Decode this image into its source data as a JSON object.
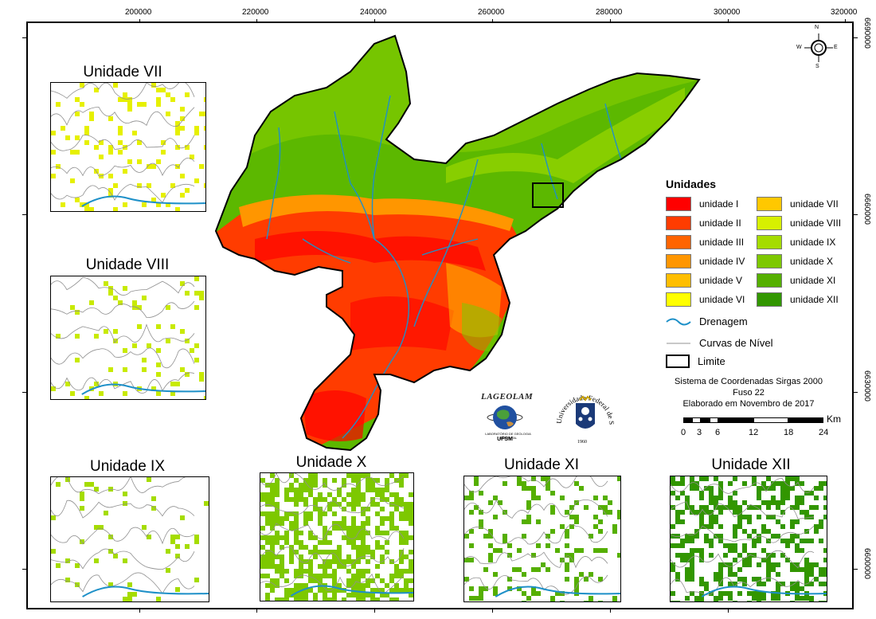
{
  "axes": {
    "x_ticks": [
      "200000",
      "220000",
      "240000",
      "260000",
      "280000",
      "300000",
      "320000"
    ],
    "y_ticks": [
      "6690000",
      "6660000",
      "6630000",
      "6600000"
    ]
  },
  "north_arrow": {
    "n": "N",
    "s": "S",
    "e": "E",
    "w": "W"
  },
  "insets": {
    "vii": "Unidade VII",
    "viii": "Unidade VIII",
    "ix": "Unidade IX",
    "x": "Unidade X",
    "xi": "Unidade XI",
    "xii": "Unidade XII"
  },
  "legend": {
    "title": "Unidades",
    "items": [
      {
        "label": "unidade I",
        "color": "#ff0000"
      },
      {
        "label": "unidade II",
        "color": "#ff3c00"
      },
      {
        "label": "unidade III",
        "color": "#ff6400"
      },
      {
        "label": "unidade IV",
        "color": "#ff9600"
      },
      {
        "label": "unidade V",
        "color": "#ffbe00"
      },
      {
        "label": "unidade VI",
        "color": "#ffff00"
      },
      {
        "label": "unidade VII",
        "color": "#ffc800"
      },
      {
        "label": "unidade VIII",
        "color": "#d7f000"
      },
      {
        "label": "unidade IX",
        "color": "#a5dc00"
      },
      {
        "label": "unidade X",
        "color": "#7dc800"
      },
      {
        "label": "unidade XI",
        "color": "#55af00"
      },
      {
        "label": "unidade XII",
        "color": "#329600"
      }
    ],
    "drenagem": "Drenagem",
    "curvas": "Curvas de Nível",
    "limite": "Limite"
  },
  "credits": {
    "line1": "Sistema de Coordenadas Sirgas 2000",
    "line2": "Fuso 22",
    "line3": "Elaborado em Novembro de 2017"
  },
  "scale": {
    "unit": "Km",
    "labels": [
      "0",
      "3",
      "6",
      "12",
      "18",
      "24"
    ]
  },
  "logos": {
    "lab_name": "LAGEOLAM",
    "lab_sub": "LABORATÓRIO DE GEOLOGIA AMBIENTAL",
    "lab_uni": "UFSM",
    "ufsm_ring": "Universidade Federal de Santa Maria",
    "ufsm_year": "1960"
  },
  "colors": {
    "drainage": "#1e90c8",
    "contour": "#909090",
    "frame": "#000000"
  }
}
